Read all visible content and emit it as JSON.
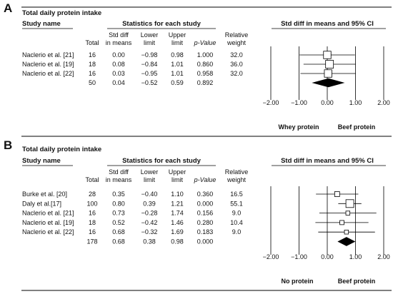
{
  "chart_data": [
    {
      "type": "forest",
      "panel_label": "A",
      "title": "Total daily protein intake",
      "headers": {
        "study_name": "Study name",
        "stats_group": "Statistics for each study",
        "total": "Total",
        "std_diff": [
          "Std diff",
          "in means"
        ],
        "lower": [
          "Lower",
          "limit"
        ],
        "upper": [
          "Upper",
          "limit"
        ],
        "p": "p-Value",
        "weight": [
          "Relative",
          "weight"
        ],
        "plot": "Std diff in means and 95% CI"
      },
      "studies": [
        {
          "name": "Naclerio et al. [21]",
          "total": "16",
          "smd": "0.00",
          "lower": "−0.98",
          "upper": "0.98",
          "p": "1.000",
          "weight": "32.0",
          "x": 0.0,
          "lo": -0.98,
          "hi": 0.98,
          "w": 32.0
        },
        {
          "name": "Naclerio et al. [19]",
          "total": "18",
          "smd": "0.08",
          "lower": "−0.84",
          "upper": "1.01",
          "p": "0.860",
          "weight": "36.0",
          "x": 0.08,
          "lo": -0.84,
          "hi": 1.01,
          "w": 36.0
        },
        {
          "name": "Naclerio et al. [22]",
          "total": "16",
          "smd": "0.03",
          "lower": "−0.95",
          "upper": "1.01",
          "p": "0.958",
          "weight": "32.0",
          "x": 0.03,
          "lo": -0.95,
          "hi": 1.01,
          "w": 32.0
        }
      ],
      "pooled": {
        "total": "50",
        "smd": "0.04",
        "lower": "−0.52",
        "upper": "0.59",
        "p": "0.892",
        "x": 0.04,
        "lo": -0.52,
        "hi": 0.59
      },
      "x_ticks": [
        -2,
        -1,
        0,
        1,
        2
      ],
      "x_tick_labels": [
        "−2.00",
        "−1.00",
        "0.00",
        "1.00",
        "2.00"
      ],
      "xlim": [
        -2,
        2
      ],
      "favours_left": "Whey protein",
      "favours_right": "Beef protein"
    },
    {
      "type": "forest",
      "panel_label": "B",
      "title": "Total daily protein intake",
      "headers": {
        "study_name": "Study name",
        "stats_group": "Statistics for each study",
        "total": "Total",
        "std_diff": [
          "Std diff",
          "in means"
        ],
        "lower": [
          "Lower",
          "limit"
        ],
        "upper": [
          "Upper",
          "limit"
        ],
        "p": "p-Value",
        "weight": [
          "Relative",
          "weight"
        ],
        "plot": "Std diff in means and 95% CI"
      },
      "studies": [
        {
          "name": "Burke et al. [20]",
          "total": "28",
          "smd": "0.35",
          "lower": "−0.40",
          "upper": "1.10",
          "p": "0.360",
          "weight": "16.5",
          "x": 0.35,
          "lo": -0.4,
          "hi": 1.1,
          "w": 16.5
        },
        {
          "name": "Daly et al.[17]",
          "total": "100",
          "smd": "0.80",
          "lower": "0.39",
          "upper": "1.21",
          "p": "0.000",
          "weight": "55.1",
          "x": 0.8,
          "lo": 0.39,
          "hi": 1.21,
          "w": 55.1
        },
        {
          "name": "Naclerio et al. [21]",
          "total": "16",
          "smd": "0.73",
          "lower": "−0.28",
          "upper": "1.74",
          "p": "0.156",
          "weight": "9.0",
          "x": 0.73,
          "lo": -0.28,
          "hi": 1.74,
          "w": 9.0
        },
        {
          "name": "Naclerio et al. [19]",
          "total": "18",
          "smd": "0.52",
          "lower": "−0.42",
          "upper": "1.46",
          "p": "0.280",
          "weight": "10.4",
          "x": 0.52,
          "lo": -0.42,
          "hi": 1.46,
          "w": 10.4
        },
        {
          "name": "Naclerio et al. [22]",
          "total": "16",
          "smd": "0.68",
          "lower": "−0.32",
          "upper": "1.69",
          "p": "0.183",
          "weight": "9.0",
          "x": 0.68,
          "lo": -0.32,
          "hi": 1.69,
          "w": 9.0
        }
      ],
      "pooled": {
        "total": "178",
        "smd": "0.68",
        "lower": "0.38",
        "upper": "0.98",
        "p": "0.000",
        "x": 0.68,
        "lo": 0.38,
        "hi": 0.98
      },
      "x_ticks": [
        -2,
        -1,
        0,
        1,
        2
      ],
      "x_tick_labels": [
        "−2.00",
        "−1.00",
        "0.00",
        "1.00",
        "2.00"
      ],
      "xlim": [
        -2,
        2
      ],
      "favours_left": "No protein",
      "favours_right": "Beef protein"
    }
  ]
}
